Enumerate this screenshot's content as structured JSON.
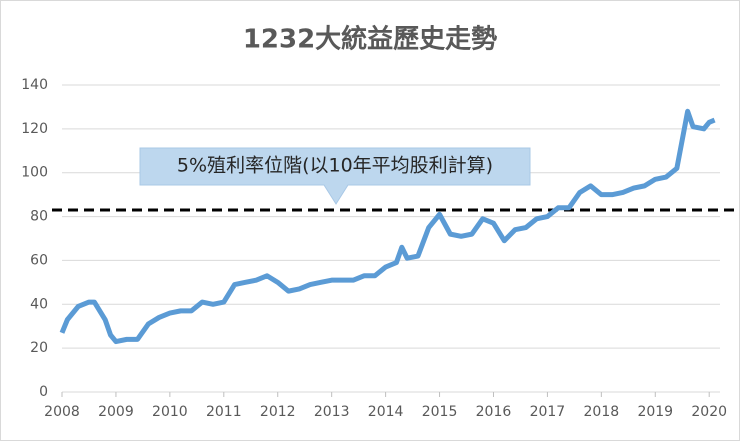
{
  "chart_data": {
    "type": "line",
    "title": "1232大統益歷史走勢",
    "annotation": "5%殖利率位階(以10年平均股利計算)",
    "reference_line": 83,
    "color": "#5b9bd5",
    "x": [
      2008.0,
      2008.1,
      2008.3,
      2008.5,
      2008.6,
      2008.8,
      2008.9,
      2009.0,
      2009.2,
      2009.4,
      2009.6,
      2009.8,
      2010.0,
      2010.2,
      2010.4,
      2010.6,
      2010.8,
      2011.0,
      2011.2,
      2011.4,
      2011.6,
      2011.8,
      2012.0,
      2012.2,
      2012.4,
      2012.6,
      2012.8,
      2013.0,
      2013.2,
      2013.4,
      2013.6,
      2013.8,
      2014.0,
      2014.2,
      2014.3,
      2014.4,
      2014.6,
      2014.8,
      2015.0,
      2015.2,
      2015.4,
      2015.6,
      2015.8,
      2016.0,
      2016.2,
      2016.4,
      2016.6,
      2016.8,
      2017.0,
      2017.2,
      2017.4,
      2017.6,
      2017.8,
      2018.0,
      2018.2,
      2018.4,
      2018.6,
      2018.8,
      2019.0,
      2019.2,
      2019.4,
      2019.6,
      2019.7,
      2019.9,
      2020.0,
      2020.1
    ],
    "values": [
      27,
      33,
      39,
      41,
      41,
      33,
      26,
      23,
      24,
      24,
      31,
      34,
      36,
      37,
      37,
      41,
      40,
      41,
      49,
      50,
      51,
      53,
      50,
      46,
      47,
      49,
      50,
      51,
      51,
      51,
      53,
      53,
      57,
      59,
      66,
      61,
      62,
      75,
      81,
      72,
      71,
      72,
      79,
      77,
      69,
      74,
      75,
      79,
      80,
      84,
      84,
      91,
      94,
      90,
      90,
      91,
      93,
      94,
      97,
      98,
      102,
      128,
      121,
      120,
      123,
      124
    ],
    "xlim": [
      2008,
      2020.2
    ],
    "xticks": [
      2008,
      2009,
      2010,
      2011,
      2012,
      2013,
      2014,
      2015,
      2016,
      2017,
      2018,
      2019,
      2020
    ],
    "ylim": [
      0,
      140
    ],
    "yticks": [
      0,
      20,
      40,
      60,
      80,
      100,
      120,
      140
    ],
    "grid": true
  }
}
